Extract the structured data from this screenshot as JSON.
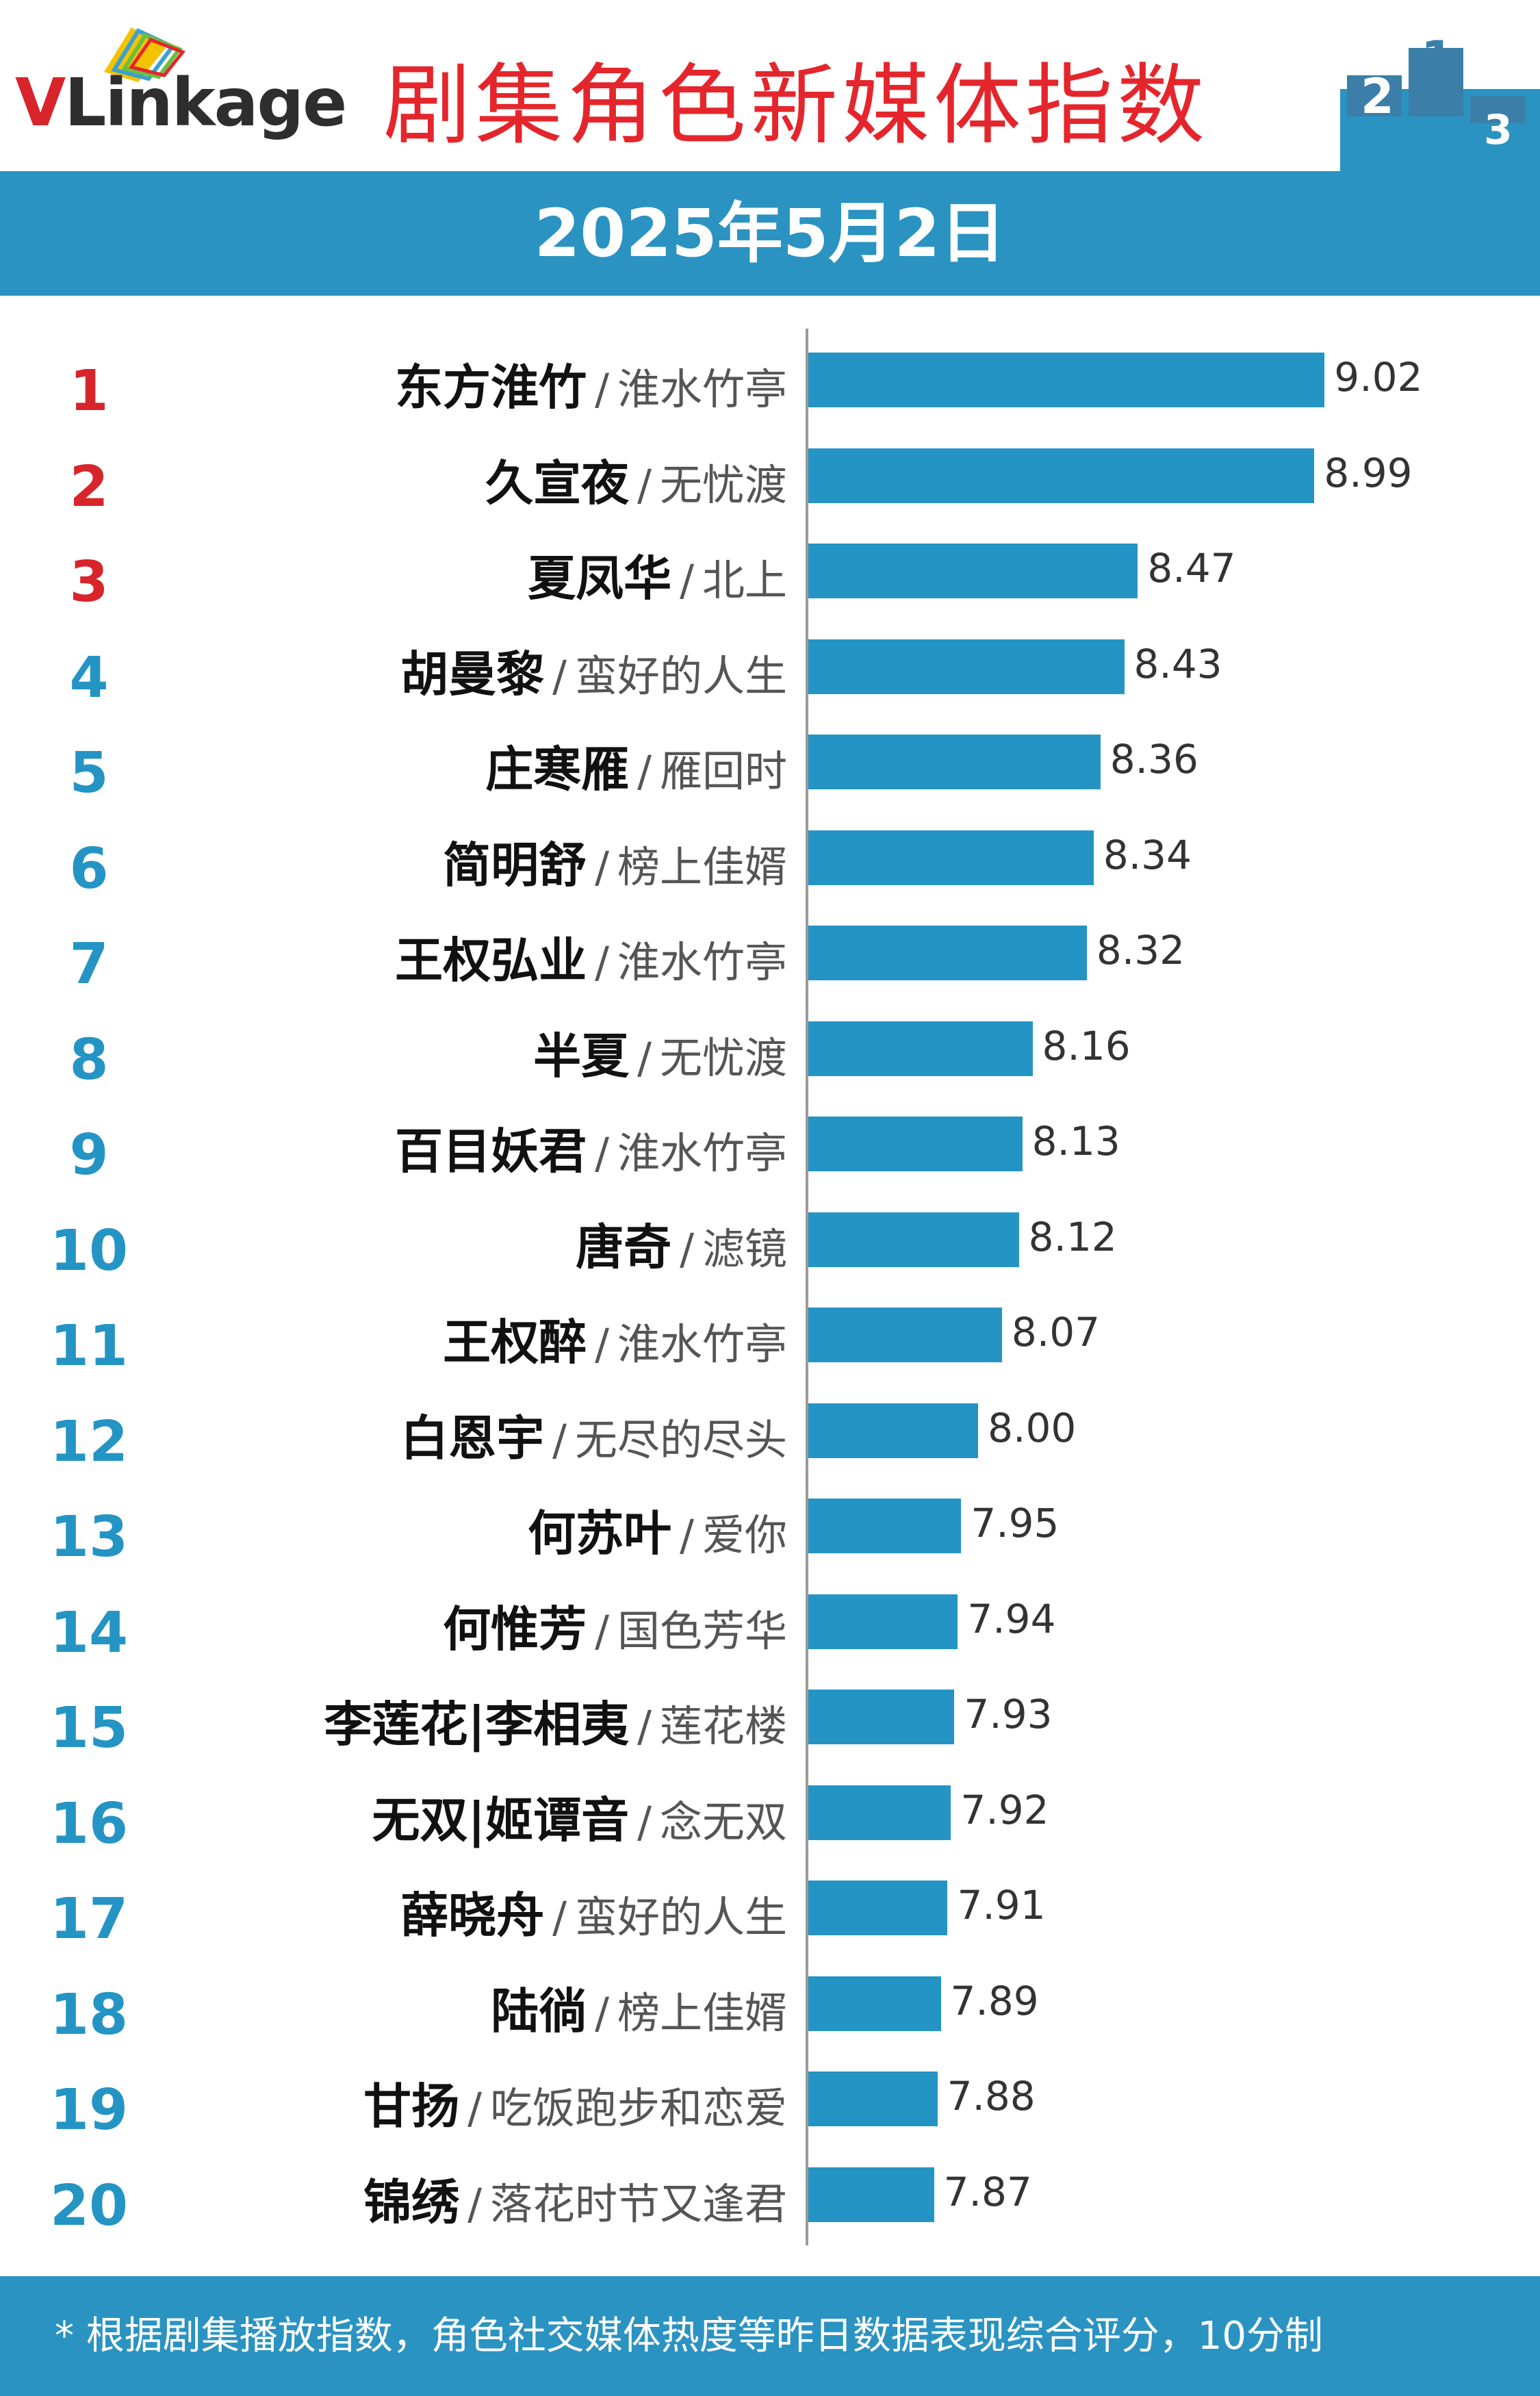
{
  "header": {
    "logo_v": "V",
    "logo_rest": "Linkage",
    "title": "剧集角色新媒体指数",
    "podium_digits": [
      "2",
      "1",
      "3"
    ]
  },
  "date": "2025年5月2日",
  "colors": {
    "bar": "#2494c4",
    "band": "#2a93c1",
    "title": "#e4262c",
    "rank_top": "#d7252b",
    "rank_other": "#2494c4"
  },
  "chart_data": {
    "type": "bar",
    "orientation": "horizontal",
    "grid": false,
    "categories": [
      {
        "rank": "1",
        "character": "东方淮竹",
        "show": "淮水竹亭"
      },
      {
        "rank": "2",
        "character": "久宣夜",
        "show": "无忧渡"
      },
      {
        "rank": "3",
        "character": "夏凤华",
        "show": "北上"
      },
      {
        "rank": "4",
        "character": "胡曼黎",
        "show": "蛮好的人生"
      },
      {
        "rank": "5",
        "character": "庄寒雁",
        "show": "雁回时"
      },
      {
        "rank": "6",
        "character": "简明舒",
        "show": "榜上佳婿"
      },
      {
        "rank": "7",
        "character": "王权弘业",
        "show": "淮水竹亭"
      },
      {
        "rank": "8",
        "character": "半夏",
        "show": "无忧渡"
      },
      {
        "rank": "9",
        "character": "百目妖君",
        "show": "淮水竹亭"
      },
      {
        "rank": "10",
        "character": "唐奇",
        "show": "滤镜"
      },
      {
        "rank": "11",
        "character": "王权醉",
        "show": "淮水竹亭"
      },
      {
        "rank": "12",
        "character": "白恩宇",
        "show": "无尽的尽头"
      },
      {
        "rank": "13",
        "character": "何苏叶",
        "show": "爱你"
      },
      {
        "rank": "14",
        "character": "何惟芳",
        "show": "国色芳华"
      },
      {
        "rank": "15",
        "character": "李莲花|李相夷",
        "show": "莲花楼"
      },
      {
        "rank": "16",
        "character": "无双|姬谭音",
        "show": "念无双"
      },
      {
        "rank": "17",
        "character": "薛晓舟",
        "show": "蛮好的人生"
      },
      {
        "rank": "18",
        "character": "陆徜",
        "show": "榜上佳婿"
      },
      {
        "rank": "19",
        "character": "甘扬",
        "show": "吃饭跑步和恋爱"
      },
      {
        "rank": "20",
        "character": "锦绣",
        "show": "落花时节又逢君"
      }
    ],
    "values": [
      "9.02",
      "8.99",
      "8.47",
      "8.43",
      "8.36",
      "8.34",
      "8.32",
      "8.16",
      "8.13",
      "8.12",
      "8.07",
      "8.00",
      "7.95",
      "7.94",
      "7.93",
      "7.92",
      "7.91",
      "7.89",
      "7.88",
      "7.87"
    ],
    "separator": "/"
  },
  "footer": {
    "note": "* 根据剧集播放指数，角色社交媒体热度等昨日数据表现综合评分，10分制"
  }
}
